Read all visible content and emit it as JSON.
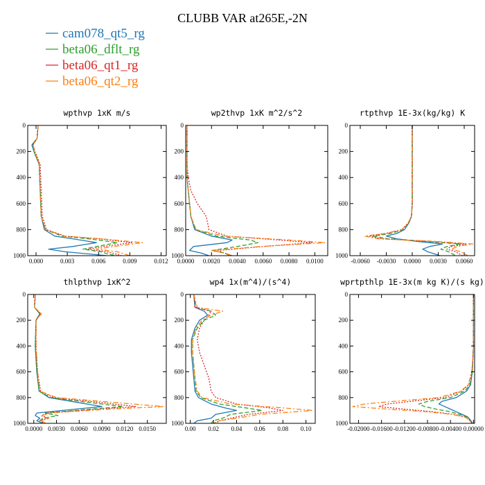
{
  "figure": {
    "title": "CLUBB VAR at265E,-2N"
  },
  "legend": [
    {
      "label": "cam078_qt5_rg",
      "color": "#1f77b4"
    },
    {
      "label": "beta06_dflt_rg",
      "color": "#2ca02c"
    },
    {
      "label": "beta06_qt1_rg",
      "color": "#d62728"
    },
    {
      "label": "beta06_qt2_rg",
      "color": "#ff7f0e"
    }
  ],
  "chart_data": [
    {
      "type": "line",
      "title": "wpthvp  1xK m/s",
      "xlim": [
        -0.0008,
        0.0125
      ],
      "xticks": [
        "0.000",
        "0.003",
        "0.006",
        "0.009",
        "0.012"
      ],
      "xtick_values": [
        0,
        0.003,
        0.006,
        0.009,
        0.012
      ],
      "ylim": [
        1000,
        0
      ],
      "yticks": [
        "0",
        "200",
        "400",
        "600",
        "800",
        "1000"
      ],
      "y": [
        0,
        100,
        150,
        200,
        300,
        500,
        700,
        800,
        850,
        870,
        900,
        930,
        950,
        970,
        990,
        1000
      ],
      "series": [
        {
          "name": "cam078_qt5_rg",
          "values": [
            0.0002,
            0.0001,
            -0.0004,
            -0.0002,
            0.0003,
            0.0004,
            0.0005,
            0.0008,
            0.0018,
            0.0035,
            0.0058,
            0.0035,
            0.0012,
            0.0028,
            0.0055,
            0.0068
          ]
        },
        {
          "name": "beta06_dflt_rg",
          "values": [
            0.0002,
            0.0001,
            -0.0003,
            -0.0002,
            0.0003,
            0.0004,
            0.0005,
            0.0009,
            0.0025,
            0.005,
            0.0078,
            0.0058,
            0.0045,
            0.0062,
            0.007,
            0.0078
          ]
        },
        {
          "name": "beta06_qt1_rg",
          "values": [
            0.0002,
            0.0001,
            -0.0003,
            -0.0001,
            0.0004,
            0.0005,
            0.0006,
            0.001,
            0.0028,
            0.006,
            0.0092,
            0.0065,
            0.005,
            0.0068,
            0.0078,
            0.0082
          ]
        },
        {
          "name": "beta06_qt2_rg",
          "values": [
            0.0002,
            0.0001,
            -0.0003,
            -0.0001,
            0.0003,
            0.0004,
            0.0005,
            0.0009,
            0.0027,
            0.0062,
            0.0102,
            0.0075,
            0.0058,
            0.0078,
            0.0086,
            0.009
          ]
        }
      ]
    },
    {
      "type": "line",
      "title": "wp2thvp  1xK m^2/s^2",
      "xlim": [
        0,
        0.011
      ],
      "xticks": [
        "0.0000",
        "0.0020",
        "0.0040",
        "0.0060",
        "0.0080",
        "0.0100"
      ],
      "xtick_values": [
        0,
        0.002,
        0.004,
        0.006,
        0.008,
        0.01
      ],
      "ylim": [
        1000,
        0
      ],
      "yticks": [
        "0",
        "200",
        "400",
        "600",
        "800",
        "1000"
      ],
      "y": [
        0,
        300,
        400,
        500,
        600,
        700,
        800,
        850,
        880,
        900,
        930,
        960,
        980,
        1000
      ],
      "series": [
        {
          "name": "cam078_qt5_rg",
          "values": [
            0.0001,
            0.0001,
            0.0001,
            0.0002,
            0.0003,
            0.0004,
            0.0007,
            0.002,
            0.0036,
            0.0032,
            0.0006,
            0.0003,
            0.0012,
            0.0018
          ]
        },
        {
          "name": "beta06_dflt_rg",
          "values": [
            0.0001,
            0.0001,
            0.0001,
            0.0002,
            0.0003,
            0.0004,
            0.0008,
            0.0024,
            0.005,
            0.0056,
            0.004,
            0.002,
            0.003,
            0.0034
          ]
        },
        {
          "name": "beta06_qt1_rg",
          "values": [
            0.0001,
            0.0001,
            0.0002,
            0.0004,
            0.0009,
            0.0016,
            0.0018,
            0.0032,
            0.0072,
            0.0098,
            0.006,
            0.0025,
            0.003,
            0.0036
          ]
        },
        {
          "name": "beta06_qt2_rg",
          "values": [
            0.0001,
            0.0001,
            0.0001,
            0.0002,
            0.0003,
            0.0004,
            0.0008,
            0.003,
            0.008,
            0.0108,
            0.0058,
            0.002,
            0.003,
            0.0036
          ]
        }
      ]
    },
    {
      "type": "line",
      "title": "rtpthvp  1E-3x(kg/kg) K",
      "xlim": [
        -0.0072,
        0.0072
      ],
      "xticks": [
        "-0.0060",
        "-0.0030",
        "0.0000",
        "0.0030",
        "0.0060"
      ],
      "xtick_values": [
        -0.006,
        -0.003,
        0,
        0.003,
        0.006
      ],
      "ylim": [
        1000,
        0
      ],
      "yticks": [
        "0",
        "200",
        "400",
        "600",
        "800",
        "1000"
      ],
      "y": [
        0,
        400,
        600,
        700,
        750,
        800,
        830,
        850,
        870,
        890,
        910,
        930,
        950,
        970,
        1000
      ],
      "series": [
        {
          "name": "cam078_qt5_rg",
          "values": [
            0.0,
            0.0,
            0.0,
            -0.0001,
            -0.0004,
            -0.0009,
            -0.0018,
            -0.003,
            -0.0018,
            0.0005,
            0.0035,
            0.002,
            0.0012,
            0.0018,
            0.0032
          ]
        },
        {
          "name": "beta06_dflt_rg",
          "values": [
            0.0,
            0.0,
            0.0,
            -0.0001,
            -0.0004,
            -0.001,
            -0.0025,
            -0.0045,
            -0.0028,
            0.0015,
            0.0055,
            0.004,
            0.0033,
            0.0042,
            0.005
          ]
        },
        {
          "name": "beta06_qt1_rg",
          "values": [
            0.0,
            0.0,
            0.0,
            -0.0001,
            -0.0005,
            -0.0012,
            -0.003,
            -0.005,
            -0.0035,
            0.002,
            0.0062,
            0.0045,
            0.004,
            0.005,
            0.0058
          ]
        },
        {
          "name": "beta06_qt2_rg",
          "values": [
            0.0,
            0.0,
            0.0,
            -0.0001,
            -0.0005,
            -0.0012,
            -0.0032,
            -0.0055,
            -0.004,
            0.0025,
            0.007,
            0.0052,
            0.0045,
            0.0056,
            0.0064
          ]
        }
      ]
    },
    {
      "type": "line",
      "title": "thlpthvp  1xK^2",
      "xlim": [
        -0.0008,
        0.0175
      ],
      "xticks": [
        "0.0000",
        "0.0030",
        "0.0060",
        "0.0090",
        "0.0120",
        "0.0150"
      ],
      "xtick_values": [
        0,
        0.003,
        0.006,
        0.009,
        0.012,
        0.015
      ],
      "ylim": [
        1000,
        0
      ],
      "yticks": [
        "0",
        "200",
        "400",
        "600",
        "800",
        "1000"
      ],
      "y": [
        0,
        100,
        150,
        200,
        400,
        600,
        750,
        800,
        840,
        870,
        890,
        920,
        940,
        960,
        980,
        1000
      ],
      "series": [
        {
          "name": "cam078_qt5_rg",
          "values": [
            0.0002,
            0.0001,
            0.0008,
            0.0003,
            0.0002,
            0.0004,
            0.0007,
            0.002,
            0.006,
            0.009,
            0.0055,
            0.0004,
            0.0002,
            0.0008,
            0.0004,
            0.0012
          ]
        },
        {
          "name": "beta06_dflt_rg",
          "values": [
            0.0002,
            0.0001,
            0.0008,
            0.0003,
            0.0002,
            0.0004,
            0.0007,
            0.0022,
            0.0075,
            0.0118,
            0.0075,
            0.0015,
            0.0032,
            0.0012,
            0.0008,
            0.0012
          ]
        },
        {
          "name": "beta06_qt1_rg",
          "values": [
            0.0002,
            0.0001,
            0.0009,
            0.0003,
            0.0003,
            0.0005,
            0.0009,
            0.0026,
            0.009,
            0.0135,
            0.0085,
            0.0018,
            0.001,
            0.0018,
            0.0008,
            0.0014
          ]
        },
        {
          "name": "beta06_qt2_rg",
          "values": [
            0.0002,
            0.0001,
            0.001,
            0.0003,
            0.0003,
            0.0005,
            0.0008,
            0.003,
            0.011,
            0.0172,
            0.01,
            0.002,
            0.0012,
            0.002,
            0.001,
            0.0016
          ]
        }
      ]
    },
    {
      "type": "line",
      "title": "wp4  1x(m^4)/(s^4)",
      "xlim": [
        -0.004,
        0.108
      ],
      "xticks": [
        "0.00",
        "0.02",
        "0.04",
        "0.06",
        "0.08",
        "0.10"
      ],
      "xtick_values": [
        0,
        0.02,
        0.04,
        0.06,
        0.08,
        0.1
      ],
      "ylim": [
        1000,
        0
      ],
      "yticks": [
        "0",
        "200",
        "400",
        "600",
        "800",
        "1000"
      ],
      "y": [
        0,
        100,
        130,
        160,
        200,
        260,
        350,
        450,
        550,
        650,
        750,
        800,
        850,
        880,
        900,
        930,
        960,
        980,
        1000
      ],
      "series": [
        {
          "name": "cam078_qt5_rg",
          "values": [
            0.003,
            0.004,
            0.012,
            0.015,
            0.008,
            0.004,
            0.001,
            0.001,
            0.002,
            0.003,
            0.004,
            0.007,
            0.018,
            0.03,
            0.04,
            0.022,
            0.018,
            0.006,
            0.003
          ]
        },
        {
          "name": "beta06_dflt_rg",
          "values": [
            0.003,
            0.005,
            0.018,
            0.022,
            0.012,
            0.006,
            0.002,
            0.002,
            0.003,
            0.004,
            0.005,
            0.009,
            0.025,
            0.048,
            0.062,
            0.035,
            0.028,
            0.02,
            0.018
          ]
        },
        {
          "name": "beta06_qt1_rg",
          "values": [
            0.003,
            0.004,
            0.018,
            0.016,
            0.012,
            0.008,
            0.006,
            0.008,
            0.012,
            0.016,
            0.018,
            0.022,
            0.04,
            0.068,
            0.08,
            0.05,
            0.035,
            0.025,
            0.022
          ]
        },
        {
          "name": "beta06_qt2_rg",
          "values": [
            0.003,
            0.006,
            0.028,
            0.018,
            0.01,
            0.005,
            0.002,
            0.002,
            0.003,
            0.004,
            0.006,
            0.01,
            0.035,
            0.08,
            0.106,
            0.06,
            0.04,
            0.025,
            0.02
          ]
        }
      ]
    },
    {
      "type": "line",
      "title": "wprtpthlp  1E-3x(m kg K)/(s kg)",
      "xlim": [
        -0.0215,
        0.0002
      ],
      "xticks": [
        "-0.02000",
        "-0.01600",
        "-0.01200",
        "-0.00800",
        "-0.00400",
        "0.00000"
      ],
      "xtick_values": [
        -0.02,
        -0.016,
        -0.012,
        -0.008,
        -0.004,
        0
      ],
      "ylim": [
        1000,
        0
      ],
      "yticks": [
        "0",
        "200",
        "400",
        "600",
        "800",
        "1000"
      ],
      "y": [
        0,
        400,
        500,
        600,
        700,
        750,
        800,
        830,
        850,
        870,
        890,
        910,
        930,
        950,
        970,
        990,
        1000
      ],
      "series": [
        {
          "name": "cam078_qt5_rg",
          "values": [
            0.0,
            0.0,
            -0.0001,
            -0.0002,
            -0.0005,
            -0.0012,
            -0.003,
            -0.0055,
            -0.006,
            -0.005,
            -0.004,
            -0.003,
            -0.002,
            -0.001,
            -0.0006,
            -0.0003,
            -0.0002
          ]
        },
        {
          "name": "beta06_dflt_rg",
          "values": [
            0.0,
            0.0,
            -0.0001,
            -0.0002,
            -0.0006,
            -0.0015,
            -0.004,
            -0.008,
            -0.0095,
            -0.0085,
            -0.0065,
            -0.004,
            -0.0025,
            -0.0012,
            -0.0007,
            -0.0004,
            -0.0003
          ]
        },
        {
          "name": "beta06_qt1_rg",
          "values": [
            0.0,
            0.0,
            -0.0001,
            -0.0003,
            -0.0008,
            -0.002,
            -0.005,
            -0.011,
            -0.015,
            -0.0165,
            -0.012,
            -0.007,
            -0.0035,
            -0.0015,
            -0.0008,
            -0.0004,
            -0.0003
          ]
        },
        {
          "name": "beta06_qt2_rg",
          "values": [
            0.0,
            0.0,
            -0.0001,
            -0.0003,
            -0.0009,
            -0.0022,
            -0.006,
            -0.014,
            -0.019,
            -0.021,
            -0.015,
            -0.008,
            -0.0038,
            -0.0016,
            -0.0008,
            -0.0004,
            -0.0003
          ]
        }
      ]
    }
  ]
}
